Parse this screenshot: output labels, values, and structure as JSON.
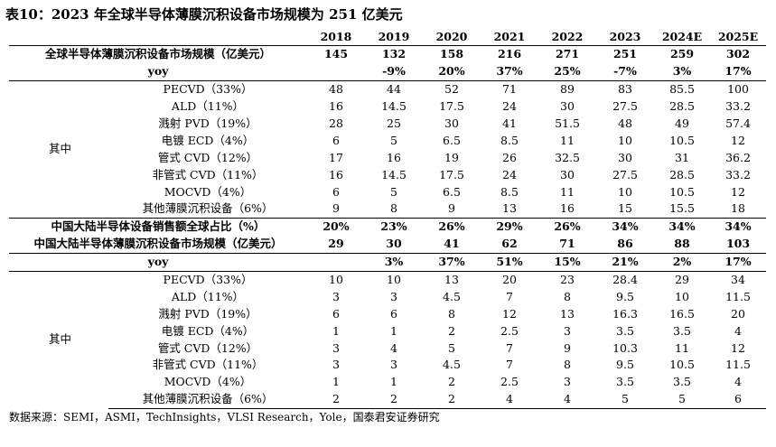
{
  "title": "表10：2023 年全球半导体薄膜沉积设备市场规模为 251 亿美元",
  "years": [
    "2018",
    "2019",
    "2020",
    "2021",
    "2022",
    "2023",
    "2024E",
    "2025E"
  ],
  "global": {
    "total_label": "全球半导体薄膜沉积设备市场规模（亿美元）",
    "total": [
      "145",
      "132",
      "158",
      "216",
      "271",
      "251",
      "259",
      "302"
    ],
    "yoy_label": "yoy",
    "yoy": [
      "",
      "-9%",
      "20%",
      "37%",
      "25%",
      "-7%",
      "3%",
      "17%"
    ],
    "group_label": "其中",
    "items": [
      {
        "label": "PECVD（33%）",
        "values": [
          "48",
          "44",
          "52",
          "71",
          "89",
          "83",
          "85.5",
          "100"
        ]
      },
      {
        "label": "ALD（11%）",
        "values": [
          "16",
          "14.5",
          "17.5",
          "24",
          "30",
          "27.5",
          "28.5",
          "33.2"
        ]
      },
      {
        "label": "溅射 PVD（19%）",
        "values": [
          "28",
          "25",
          "30",
          "41",
          "51.5",
          "48",
          "49",
          "57.4"
        ]
      },
      {
        "label": "电镀 ECD（4%）",
        "values": [
          "6",
          "5",
          "6.5",
          "8.5",
          "11",
          "10",
          "10.5",
          "12"
        ]
      },
      {
        "label": "管式 CVD（12%）",
        "values": [
          "17",
          "16",
          "19",
          "26",
          "32.5",
          "30",
          "31",
          "36.2"
        ]
      },
      {
        "label": "非管式 CVD（11%）",
        "values": [
          "16",
          "14.5",
          "17.5",
          "24",
          "30",
          "27.5",
          "28.5",
          "33.2"
        ]
      },
      {
        "label": "MOCVD（4%）",
        "values": [
          "6",
          "5",
          "6.5",
          "8.5",
          "11",
          "10",
          "10.5",
          "12"
        ]
      },
      {
        "label": "其他薄膜沉积设备（6%）",
        "values": [
          "9",
          "8",
          "9",
          "13",
          "16",
          "15",
          "15.5",
          "18"
        ]
      }
    ]
  },
  "share": {
    "label": "中国大陆半导体设备销售额全球占比（%）",
    "values": [
      "20%",
      "23%",
      "26%",
      "29%",
      "26%",
      "34%",
      "34%",
      "34%"
    ]
  },
  "china": {
    "total_label": "中国大陆半导体薄膜沉积设备市场规模（亿美元）",
    "total": [
      "29",
      "30",
      "41",
      "62",
      "71",
      "86",
      "88",
      "103"
    ],
    "yoy_label": "yoy",
    "yoy": [
      "",
      "3%",
      "37%",
      "51%",
      "15%",
      "21%",
      "2%",
      "17%"
    ],
    "group_label": "其中",
    "items": [
      {
        "label": "PECVD（33%）",
        "values": [
          "10",
          "10",
          "13",
          "20",
          "23",
          "28.4",
          "29",
          "34"
        ]
      },
      {
        "label": "ALD（11%）",
        "values": [
          "3",
          "3",
          "4.5",
          "7",
          "8",
          "9.5",
          "10",
          "11.5"
        ]
      },
      {
        "label": "溅射 PVD（19%）",
        "values": [
          "6",
          "6",
          "8",
          "12",
          "13",
          "16.3",
          "16.5",
          "20"
        ]
      },
      {
        "label": "电镀 ECD（4%）",
        "values": [
          "1",
          "1",
          "2",
          "2.5",
          "3",
          "3.5",
          "3.5",
          "4"
        ]
      },
      {
        "label": "管式 CVD（12%）",
        "values": [
          "3",
          "4",
          "5",
          "7",
          "9",
          "10.3",
          "11",
          "12"
        ]
      },
      {
        "label": "非管式 CVD（11%）",
        "values": [
          "3",
          "3",
          "4.5",
          "7",
          "8",
          "9.5",
          "10.5",
          "11.5"
        ]
      },
      {
        "label": "MOCVD（4%）",
        "values": [
          "1",
          "1",
          "2",
          "2.5",
          "3",
          "3.5",
          "3.5",
          "4"
        ]
      },
      {
        "label": "其他薄膜沉积设备（6%）",
        "values": [
          "2",
          "2",
          "2",
          "4",
          "4",
          "5",
          "5",
          "6"
        ]
      }
    ]
  },
  "source": "数据来源：SEMI，ASMI，TechInsights，VLSI Research，Yole，国泰君安证券研究"
}
